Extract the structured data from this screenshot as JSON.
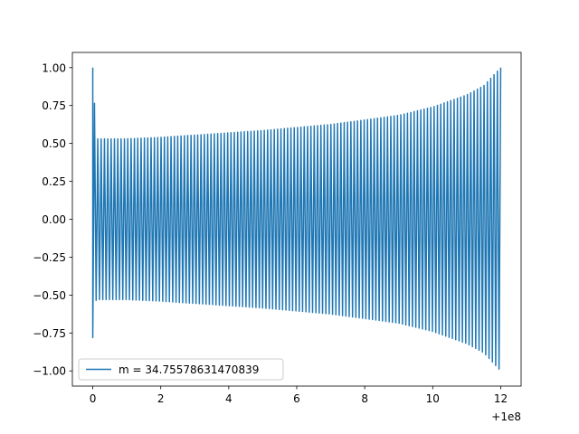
{
  "chart_data": {
    "type": "line",
    "title": "",
    "xlabel": "",
    "ylabel": "",
    "x_offset_label": "+1e8",
    "xlim": [
      -0.6,
      12.6
    ],
    "ylim": [
      -1.1,
      1.1
    ],
    "x_ticks": [
      0,
      2,
      4,
      6,
      8,
      10,
      12
    ],
    "x_tick_labels": [
      "0",
      "2",
      "4",
      "6",
      "8",
      "10",
      "12"
    ],
    "y_ticks": [
      1.0,
      0.75,
      0.5,
      0.25,
      0.0,
      -0.25,
      -0.5,
      -0.75,
      -1.0
    ],
    "y_tick_labels": [
      "1.00",
      "0.75",
      "0.50",
      "0.25",
      "0.00",
      "−0.25",
      "−0.50",
      "−0.75",
      "−1.00"
    ],
    "grid": false,
    "legend_position": "lower-left",
    "series": [
      {
        "name": "m = 34.75578631470839",
        "color": "#1f77b4",
        "x_range": [
          0,
          12
        ],
        "start_values": [
          1.0,
          -0.78
        ],
        "oscillation_count": 122,
        "envelope": {
          "x": [
            0.0,
            0.1,
            1,
            2,
            3,
            4,
            5,
            6,
            7,
            8,
            9,
            10,
            10.5,
            11,
            11.5,
            12
          ],
          "amplitude": [
            1.0,
            0.53,
            0.53,
            0.54,
            0.555,
            0.57,
            0.585,
            0.605,
            0.625,
            0.655,
            0.685,
            0.74,
            0.78,
            0.82,
            0.88,
            1.0
          ]
        }
      }
    ]
  }
}
